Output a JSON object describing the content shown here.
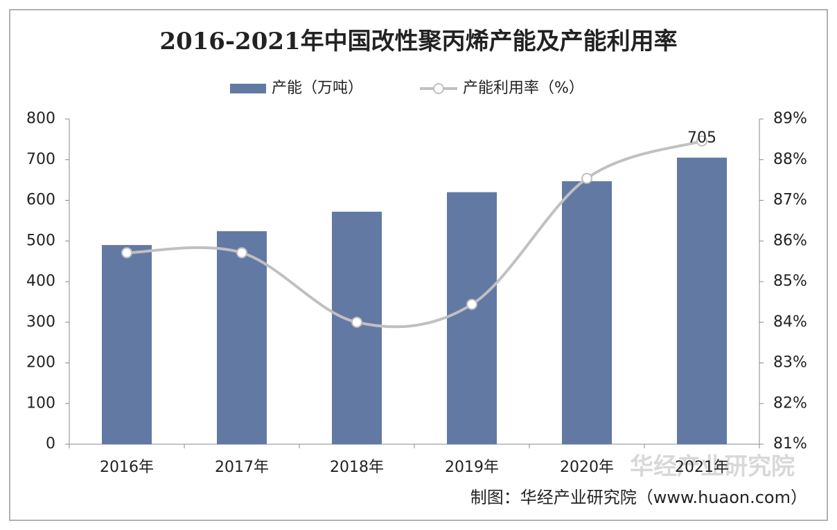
{
  "chart_data": {
    "type": "bar-line",
    "title": "2016-2021年中国改性聚丙烯产能及产能利用率",
    "categories": [
      "2016年",
      "2017年",
      "2018年",
      "2019年",
      "2020年",
      "2021年"
    ],
    "series": [
      {
        "name": "产能（万吨）",
        "type": "bar",
        "color": "#6279a4",
        "values": [
          490,
          524,
          572,
          620,
          647,
          705
        ]
      },
      {
        "name": "产能利用率（%）",
        "type": "line",
        "axis": "y2",
        "color": "#c0c0c0",
        "values": [
          85.71,
          85.71,
          84.0,
          84.44,
          87.54,
          88.46
        ]
      }
    ],
    "ylim": [
      0,
      800
    ],
    "yticks": [
      0,
      100,
      200,
      300,
      400,
      500,
      600,
      700,
      800
    ],
    "y2lim": [
      81,
      89
    ],
    "y2ticks": [
      {
        "value": 81,
        "label": "81%"
      },
      {
        "value": 82,
        "label": "82%"
      },
      {
        "value": 83,
        "label": "83%"
      },
      {
        "value": 84,
        "label": "84%"
      },
      {
        "value": 85,
        "label": "85%"
      },
      {
        "value": 86,
        "label": "86%"
      },
      {
        "value": 87,
        "label": "87%"
      },
      {
        "value": 88,
        "label": "88%"
      },
      {
        "value": 89,
        "label": "89%"
      }
    ],
    "watermark": "华经产业研究院",
    "source": "制图：华经产业研究院（www.huaon.com）"
  }
}
